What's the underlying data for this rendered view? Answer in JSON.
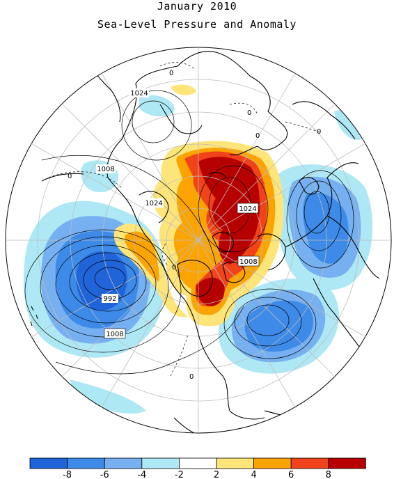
{
  "title": "January 2010",
  "subtitle": "Sea-Level Pressure and Anomaly",
  "legend": {
    "colors": [
      "#1f64d8",
      "#3d8ae8",
      "#76b0f0",
      "#aee8f4",
      "#ffffff",
      "#fde57a",
      "#fba400",
      "#f0431b",
      "#b70000"
    ],
    "tick_labels": [
      "-8",
      "-6",
      "-4",
      "-2",
      "2",
      "4",
      "6",
      "8"
    ]
  },
  "contour_labels": [
    {
      "id": "label-1024-nw",
      "text": "1024"
    },
    {
      "id": "label-1008-w",
      "text": "1008"
    },
    {
      "id": "label-1024-c",
      "text": "1024"
    },
    {
      "id": "label-1024-e",
      "text": "1024"
    },
    {
      "id": "label-1008-e",
      "text": "1008"
    },
    {
      "id": "label-992",
      "text": "992"
    },
    {
      "id": "label-1008-sw",
      "text": "1008"
    },
    {
      "id": "label-0-n",
      "text": "0"
    },
    {
      "id": "label-0-ne",
      "text": "0"
    },
    {
      "id": "label-0-ne2",
      "text": "0"
    },
    {
      "id": "label-0-far-e",
      "text": "0"
    },
    {
      "id": "label-0-w",
      "text": "0"
    },
    {
      "id": "label-0-c",
      "text": "0"
    },
    {
      "id": "label-0-s",
      "text": "0"
    }
  ]
}
